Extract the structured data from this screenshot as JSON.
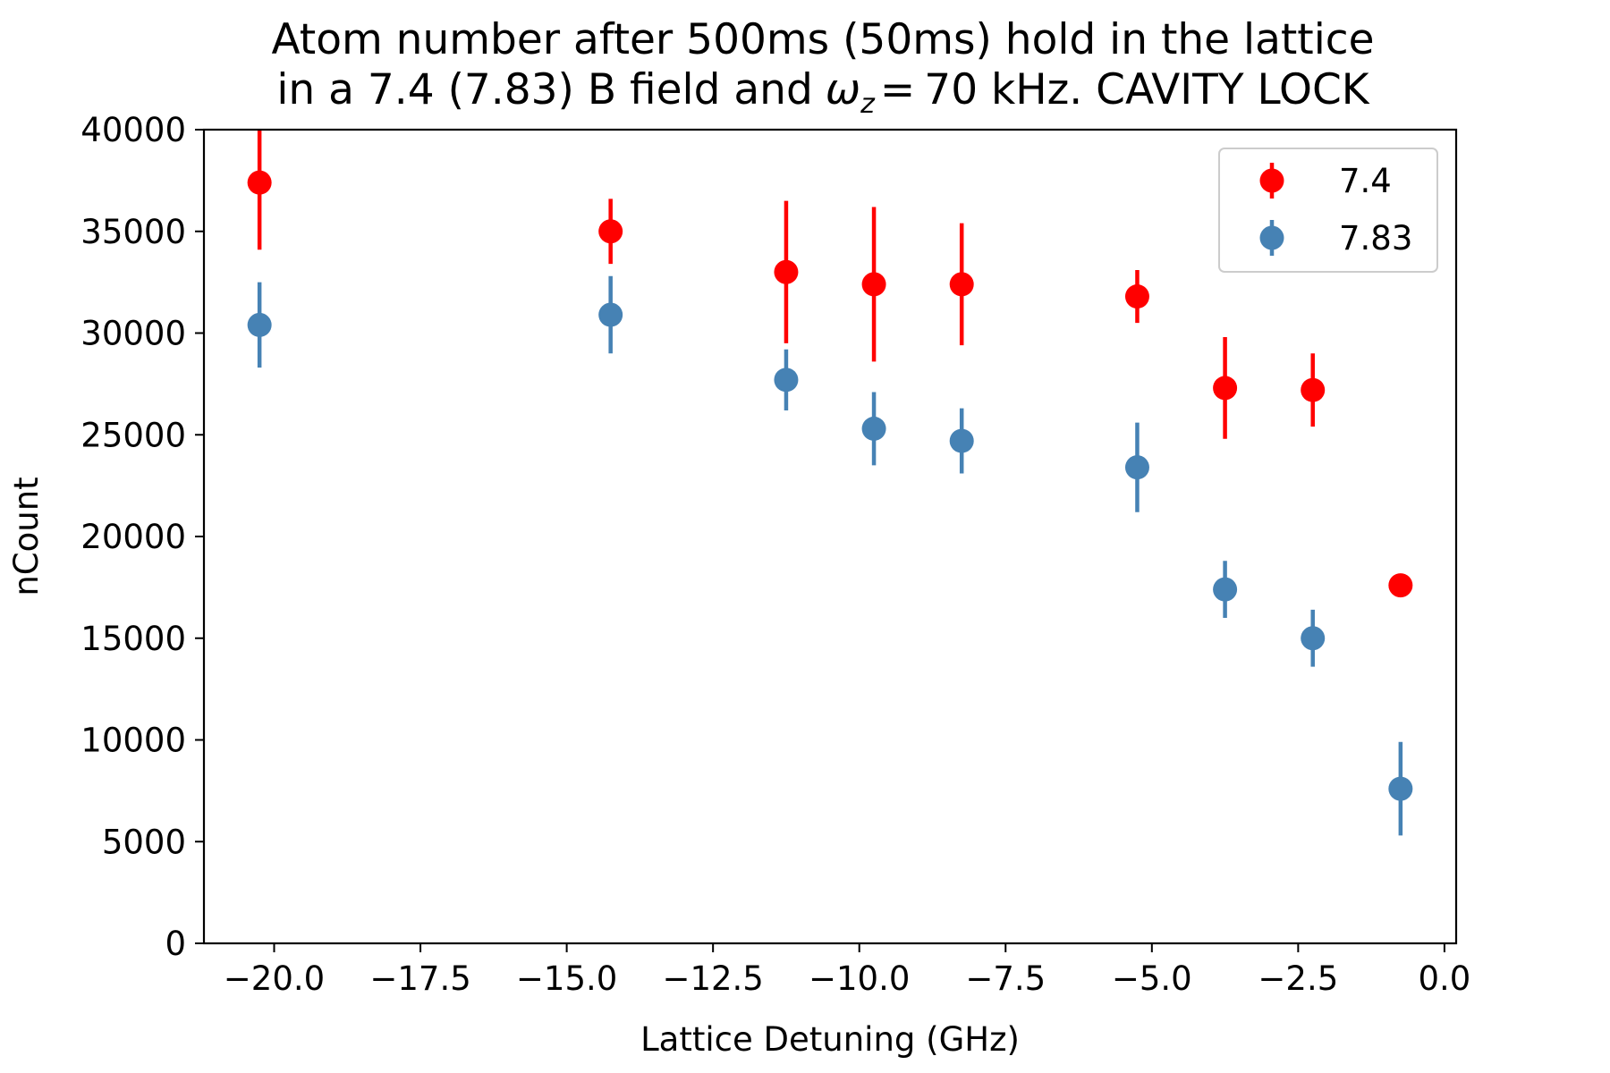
{
  "chart_data": {
    "type": "scatter",
    "title_lines": [
      "Atom number after 500ms (50ms) hold in the lattice",
      "in a 7.4 (7.83) B field and"
    ],
    "title_math": {
      "symbol": "ω",
      "subscript": "z",
      "equals": "=",
      "rest": "70 kHz. CAVITY LOCK"
    },
    "xlabel": "Lattice Detuning (GHz)",
    "ylabel": "nCount",
    "xlim": [
      -21.2,
      0.2
    ],
    "ylim": [
      0,
      40000
    ],
    "xticks": [
      -20.0,
      -17.5,
      -15.0,
      -12.5,
      -10.0,
      -7.5,
      -5.0,
      -2.5,
      0.0
    ],
    "xtick_labels": [
      "−20.0",
      "−17.5",
      "−15.0",
      "−12.5",
      "−10.0",
      "−7.5",
      "−5.0",
      "−2.5",
      "0.0"
    ],
    "yticks": [
      0,
      5000,
      10000,
      15000,
      20000,
      25000,
      30000,
      35000,
      40000
    ],
    "ytick_labels": [
      "0",
      "5000",
      "10000",
      "15000",
      "20000",
      "25000",
      "30000",
      "35000",
      "40000"
    ],
    "grid": false,
    "legend_position": "top-right",
    "series": [
      {
        "name": "7.4",
        "color": "#ff0000",
        "x": [
          -20.25,
          -14.25,
          -11.25,
          -9.75,
          -8.25,
          -5.25,
          -3.75,
          -2.25,
          -0.75
        ],
        "y": [
          37400,
          35000,
          33000,
          32400,
          32400,
          31800,
          27300,
          27200,
          17600
        ],
        "yerr": [
          3300,
          1600,
          3500,
          3800,
          3000,
          1300,
          2500,
          1800,
          0
        ]
      },
      {
        "name": "7.83",
        "color": "#4682b4",
        "x": [
          -20.25,
          -14.25,
          -11.25,
          -9.75,
          -8.25,
          -5.25,
          -3.75,
          -2.25,
          -0.75
        ],
        "y": [
          30400,
          30900,
          27700,
          25300,
          24700,
          23400,
          17400,
          15000,
          7600
        ],
        "yerr": [
          2100,
          1900,
          1500,
          1800,
          1600,
          2200,
          1400,
          1400,
          2300
        ]
      }
    ]
  }
}
